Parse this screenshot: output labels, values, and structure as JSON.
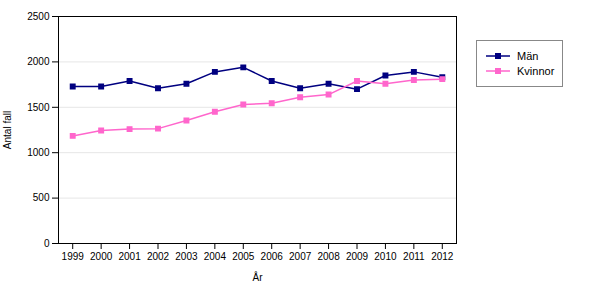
{
  "chart_data": {
    "type": "line",
    "x": [
      1999,
      2000,
      2001,
      2002,
      2003,
      2004,
      2005,
      2006,
      2007,
      2008,
      2009,
      2010,
      2011,
      2012
    ],
    "series": [
      {
        "name": "Män",
        "color": "#000080",
        "marker": "square",
        "line_style": "solid",
        "values": [
          1730,
          1730,
          1790,
          1710,
          1760,
          1890,
          1940,
          1790,
          1710,
          1760,
          1700,
          1850,
          1890,
          1830
        ]
      },
      {
        "name": "Kvinnor",
        "color": "#FF66CC",
        "marker": "square",
        "line_style": "solid",
        "values": [
          1185,
          1245,
          1260,
          1265,
          1355,
          1450,
          1530,
          1545,
          1610,
          1640,
          1790,
          1760,
          1800,
          1810
        ]
      }
    ],
    "xlabel": "År",
    "ylabel": "Antal fall",
    "xlim": [
      1998.5,
      2012.5
    ],
    "xticks": [
      1999,
      2000,
      2001,
      2002,
      2003,
      2004,
      2005,
      2006,
      2007,
      2008,
      2009,
      2010,
      2011,
      2012
    ],
    "ylim": [
      0,
      2500
    ],
    "yticks": [
      0,
      500,
      1000,
      1500,
      2000,
      2500
    ],
    "grid": true,
    "legend": "right"
  }
}
